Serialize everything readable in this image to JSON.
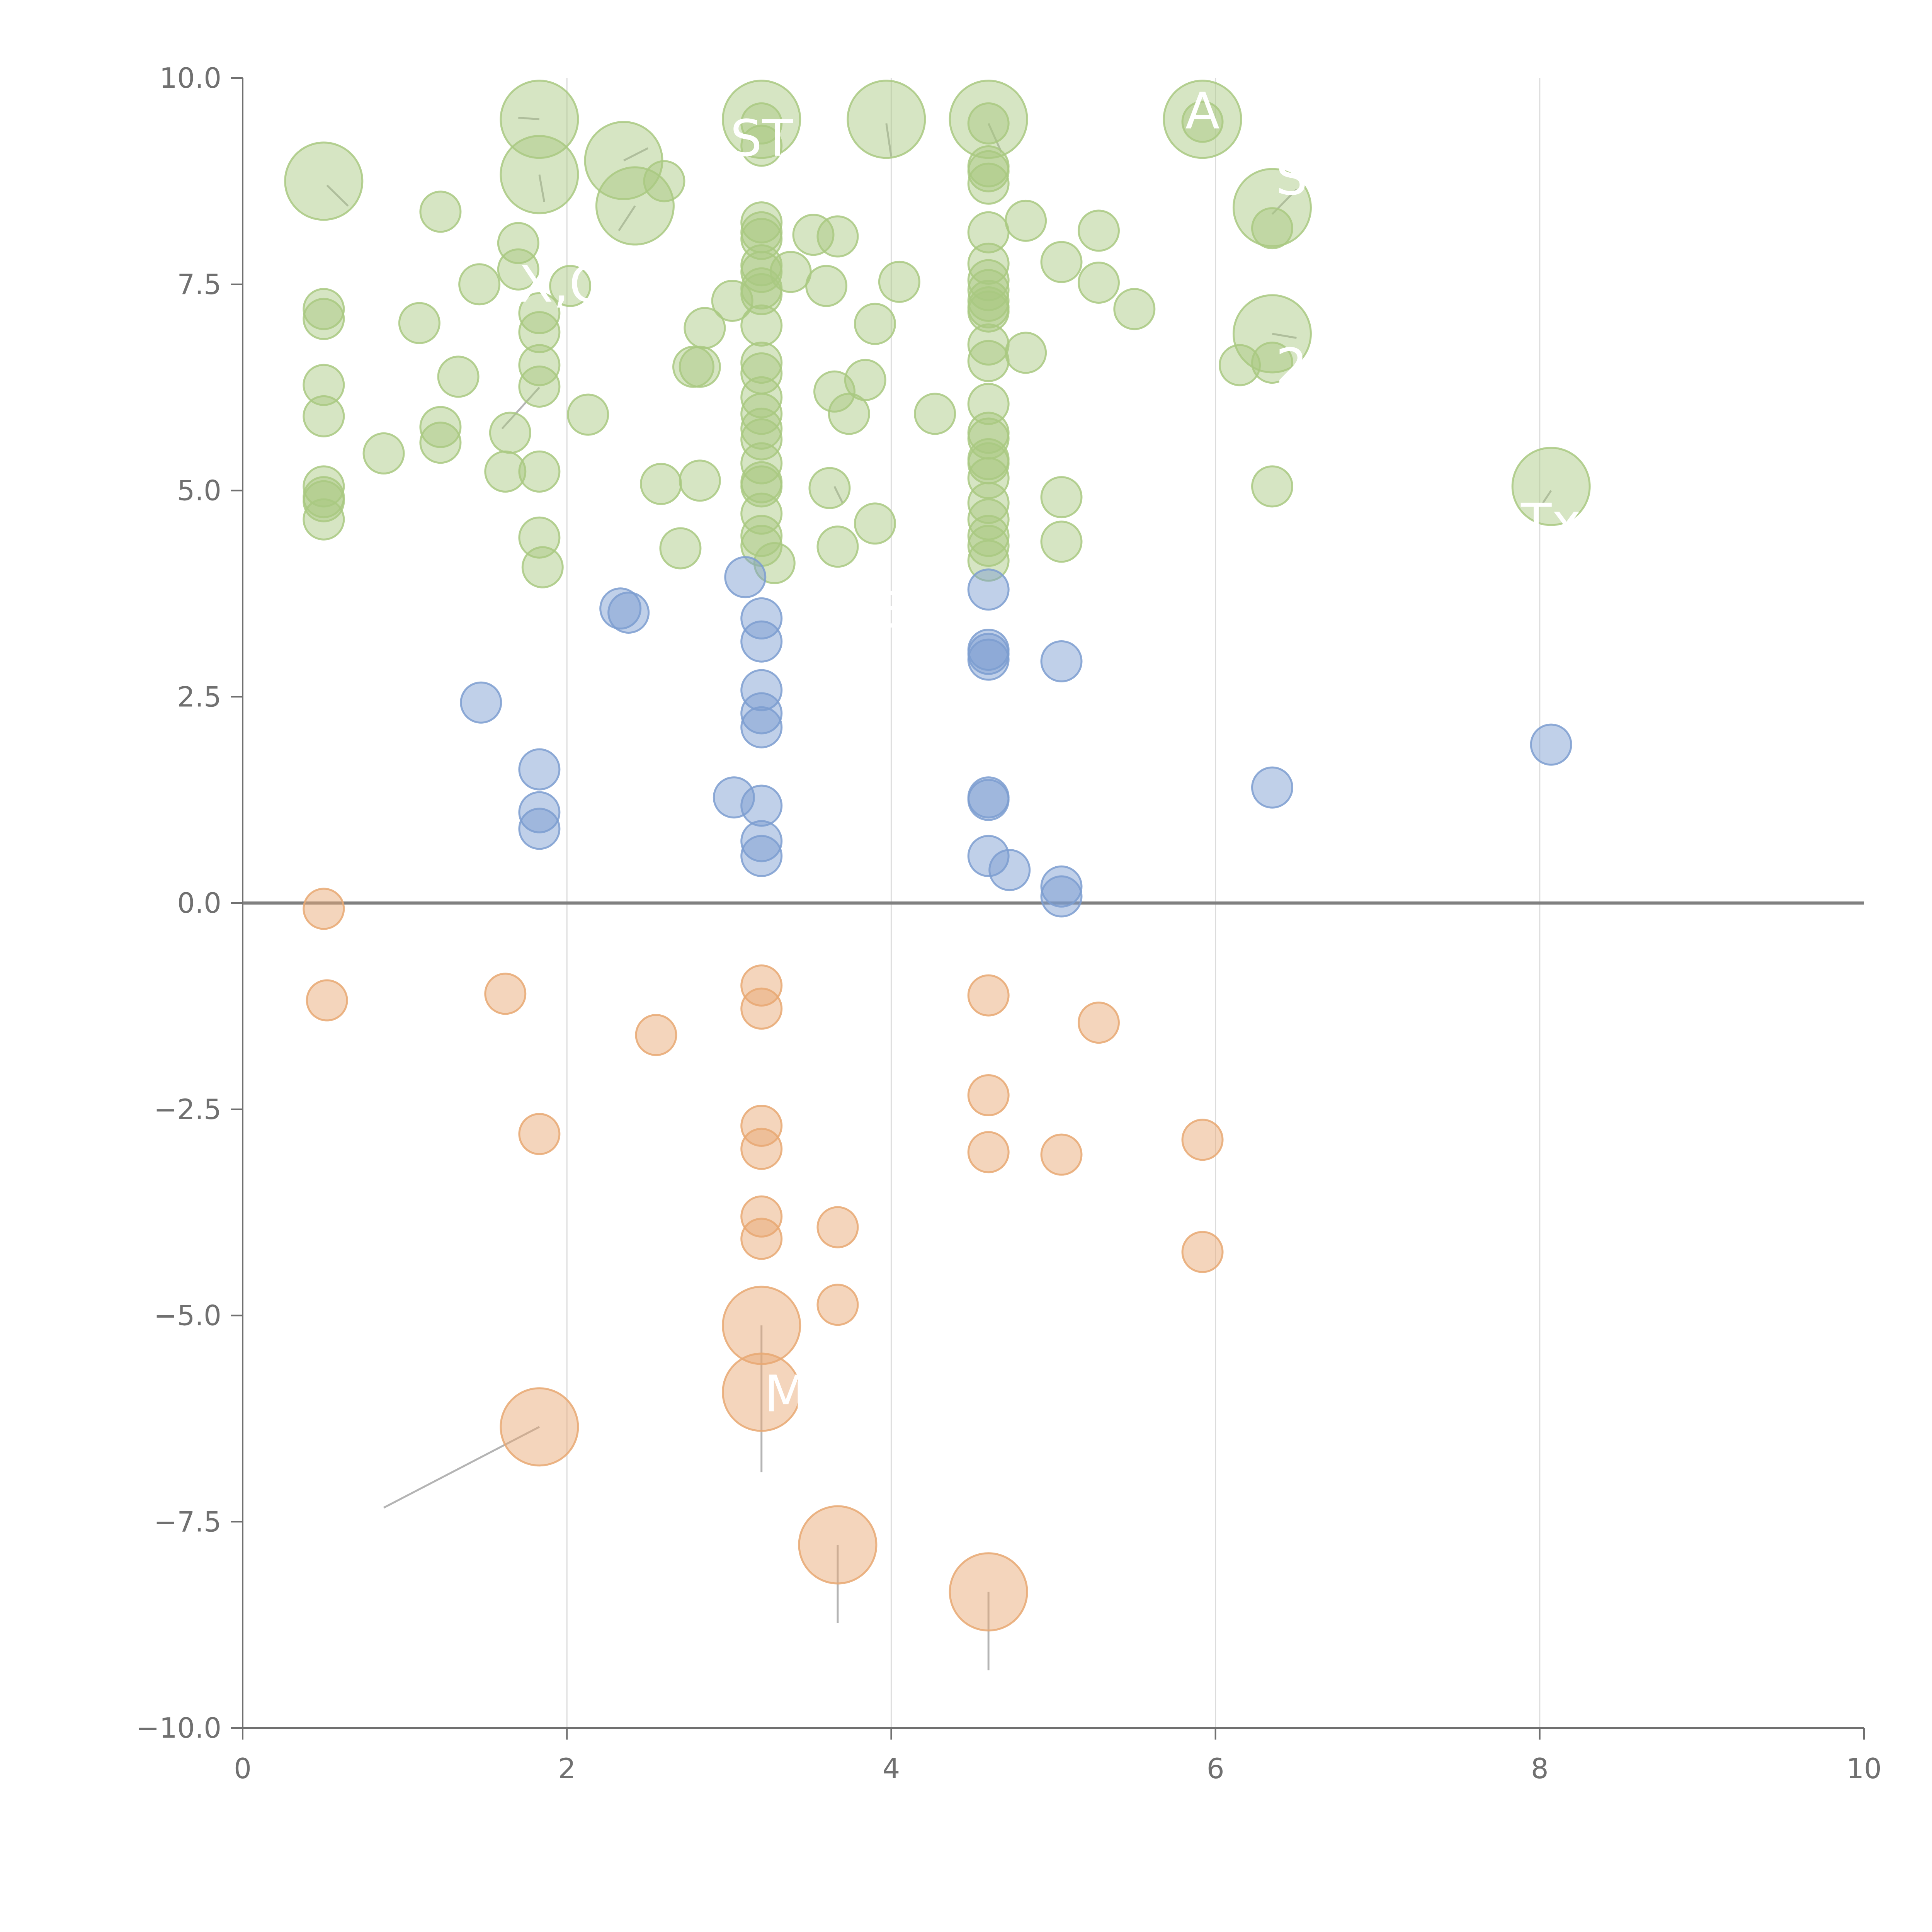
{
  "chart_data": {
    "type": "scatter",
    "title": "",
    "xlabel": "",
    "ylabel": "",
    "xlim": [
      0,
      10
    ],
    "ylim": [
      -10,
      10
    ],
    "x_ticks": [
      0,
      2,
      4,
      6,
      8,
      10
    ],
    "y_ticks": [
      -10,
      -7.5,
      -5,
      -2.5,
      0,
      2.5,
      5,
      7.5,
      10
    ],
    "x_tick_labels": [
      "0",
      "2",
      "4",
      "6",
      "8",
      "10"
    ],
    "y_tick_labels": [
      "−10.0",
      "−7.5",
      "−5.0",
      "−2.5",
      "0.0",
      "2.5",
      "5.0",
      "7.5",
      "10.0"
    ],
    "vertical_grid_at": [
      2,
      4,
      6,
      8
    ],
    "zero_line": 0,
    "colors": {
      "high": "#a9c981",
      "mid": "#7c9dd0",
      "low": "#e8a872",
      "axis": "#707070",
      "grid": "#dcdcdc",
      "zero_line": "#808080",
      "leader": "#b4b4b4",
      "label": "#ffffff"
    },
    "series": [
      {
        "name": "high",
        "color_key": "high",
        "points": [
          [
            0.5,
            8.75,
            2
          ],
          [
            0.5,
            7.2,
            1
          ],
          [
            0.5,
            7.08,
            1
          ],
          [
            0.5,
            6.28,
            1
          ],
          [
            0.5,
            5.9,
            1
          ],
          [
            0.5,
            5.05,
            1
          ],
          [
            0.5,
            4.92,
            1
          ],
          [
            0.5,
            4.87,
            1
          ],
          [
            0.5,
            4.65,
            1
          ],
          [
            0.87,
            5.45,
            1
          ],
          [
            1.09,
            7.03,
            1
          ],
          [
            1.22,
            8.38,
            1
          ],
          [
            1.22,
            5.77,
            1
          ],
          [
            1.22,
            5.58,
            1
          ],
          [
            1.33,
            6.38,
            1
          ],
          [
            1.46,
            7.5,
            1
          ],
          [
            1.62,
            5.23,
            1
          ],
          [
            1.65,
            5.7,
            1
          ],
          [
            1.7,
            8.0,
            1
          ],
          [
            1.7,
            7.68,
            1
          ],
          [
            1.83,
            9.5,
            2
          ],
          [
            1.83,
            8.83,
            2
          ],
          [
            1.83,
            7.15,
            1
          ],
          [
            1.83,
            6.92,
            1
          ],
          [
            1.83,
            6.52,
            1
          ],
          [
            1.83,
            6.26,
            1
          ],
          [
            1.83,
            5.23,
            1
          ],
          [
            1.83,
            4.43,
            1
          ],
          [
            1.85,
            4.07,
            1
          ],
          [
            2.02,
            7.48,
            1
          ],
          [
            2.13,
            5.92,
            1
          ],
          [
            2.35,
            9.0,
            2
          ],
          [
            2.42,
            8.45,
            2
          ],
          [
            2.6,
            8.75,
            1
          ],
          [
            2.58,
            5.08,
            1
          ],
          [
            2.7,
            4.3,
            1
          ],
          [
            2.78,
            6.5,
            1
          ],
          [
            2.82,
            6.5,
            1
          ],
          [
            2.82,
            5.12,
            1
          ],
          [
            2.85,
            6.97,
            1
          ],
          [
            3.02,
            7.3,
            1
          ],
          [
            3.2,
            9.5,
            2
          ],
          [
            3.2,
            9.45,
            1
          ],
          [
            3.2,
            9.18,
            1
          ],
          [
            3.2,
            8.25,
            1
          ],
          [
            3.2,
            8.13,
            1
          ],
          [
            3.2,
            8.05,
            1
          ],
          [
            3.2,
            7.73,
            1
          ],
          [
            3.2,
            7.65,
            1
          ],
          [
            3.2,
            7.45,
            1
          ],
          [
            3.2,
            7.38,
            1
          ],
          [
            3.2,
            7.0,
            1
          ],
          [
            3.2,
            6.55,
            1
          ],
          [
            3.2,
            6.42,
            1
          ],
          [
            3.2,
            6.13,
            1
          ],
          [
            3.2,
            5.93,
            1
          ],
          [
            3.2,
            5.75,
            1
          ],
          [
            3.2,
            5.62,
            1
          ],
          [
            3.2,
            5.33,
            1
          ],
          [
            3.2,
            5.1,
            1
          ],
          [
            3.2,
            5.05,
            1
          ],
          [
            3.2,
            4.72,
            1
          ],
          [
            3.2,
            4.45,
            1
          ],
          [
            3.2,
            4.33,
            1
          ],
          [
            3.28,
            4.12,
            1
          ],
          [
            3.38,
            7.65,
            1
          ],
          [
            3.52,
            8.1,
            1
          ],
          [
            3.6,
            7.48,
            1
          ],
          [
            3.62,
            5.03,
            1
          ],
          [
            3.65,
            6.2,
            1
          ],
          [
            3.67,
            8.08,
            1
          ],
          [
            3.67,
            4.32,
            1
          ],
          [
            3.74,
            5.93,
            1
          ],
          [
            3.84,
            6.34,
            1
          ],
          [
            3.9,
            7.02,
            1
          ],
          [
            3.9,
            4.6,
            1
          ],
          [
            3.97,
            9.5,
            2
          ],
          [
            4.05,
            7.53,
            1
          ],
          [
            4.27,
            5.93,
            1
          ],
          [
            4.6,
            9.5,
            2
          ],
          [
            4.6,
            9.45,
            1
          ],
          [
            4.6,
            8.93,
            1
          ],
          [
            4.6,
            8.87,
            1
          ],
          [
            4.6,
            8.72,
            1
          ],
          [
            4.6,
            8.13,
            1
          ],
          [
            4.6,
            7.75,
            1
          ],
          [
            4.6,
            7.55,
            1
          ],
          [
            4.6,
            7.43,
            1
          ],
          [
            4.6,
            7.3,
            1
          ],
          [
            4.6,
            7.22,
            1
          ],
          [
            4.6,
            7.17,
            1
          ],
          [
            4.6,
            6.77,
            1
          ],
          [
            4.6,
            6.57,
            1
          ],
          [
            4.6,
            6.05,
            1
          ],
          [
            4.6,
            5.7,
            1
          ],
          [
            4.6,
            5.63,
            1
          ],
          [
            4.6,
            5.38,
            1
          ],
          [
            4.6,
            5.33,
            1
          ],
          [
            4.6,
            5.15,
            1
          ],
          [
            4.6,
            4.85,
            1
          ],
          [
            4.6,
            4.65,
            1
          ],
          [
            4.6,
            4.45,
            1
          ],
          [
            4.6,
            4.33,
            1
          ],
          [
            4.6,
            4.15,
            1
          ],
          [
            4.83,
            8.27,
            1
          ],
          [
            4.83,
            6.67,
            1
          ],
          [
            5.05,
            7.77,
            1
          ],
          [
            5.05,
            4.92,
            1
          ],
          [
            5.05,
            4.38,
            1
          ],
          [
            5.28,
            8.15,
            1
          ],
          [
            5.28,
            7.52,
            1
          ],
          [
            5.5,
            7.2,
            1
          ],
          [
            5.92,
            9.5,
            2
          ],
          [
            5.92,
            9.47,
            1
          ],
          [
            6.15,
            6.52,
            1
          ],
          [
            6.35,
            8.43,
            2
          ],
          [
            6.35,
            8.18,
            1
          ],
          [
            6.35,
            6.9,
            2
          ],
          [
            6.35,
            6.55,
            1
          ],
          [
            6.35,
            5.05,
            1
          ],
          [
            8.07,
            5.05,
            2
          ]
        ]
      },
      {
        "name": "mid",
        "color_key": "mid",
        "points": [
          [
            1.47,
            2.43,
            1
          ],
          [
            1.83,
            1.62,
            1
          ],
          [
            1.83,
            1.1,
            1
          ],
          [
            1.83,
            0.9,
            1
          ],
          [
            2.33,
            3.57,
            1
          ],
          [
            2.38,
            3.52,
            1
          ],
          [
            3.03,
            1.28,
            1
          ],
          [
            3.1,
            3.95,
            1
          ],
          [
            3.2,
            3.45,
            1
          ],
          [
            3.2,
            3.17,
            1
          ],
          [
            3.2,
            2.58,
            1
          ],
          [
            3.2,
            2.3,
            1
          ],
          [
            3.2,
            2.13,
            1
          ],
          [
            3.2,
            1.18,
            1
          ],
          [
            3.2,
            0.75,
            1
          ],
          [
            3.2,
            0.57,
            1
          ],
          [
            4.6,
            3.8,
            1
          ],
          [
            4.6,
            3.07,
            1
          ],
          [
            4.6,
            3.02,
            1
          ],
          [
            4.6,
            2.95,
            1
          ],
          [
            4.6,
            1.28,
            1
          ],
          [
            4.6,
            1.25,
            1
          ],
          [
            4.6,
            0.57,
            1
          ],
          [
            4.73,
            0.4,
            1
          ],
          [
            5.05,
            2.93,
            1
          ],
          [
            5.05,
            0.2,
            1
          ],
          [
            5.05,
            0.08,
            1
          ],
          [
            6.35,
            1.4,
            1
          ],
          [
            8.07,
            1.92,
            1
          ]
        ]
      },
      {
        "name": "low",
        "color_key": "low",
        "points": [
          [
            0.5,
            -0.07,
            1
          ],
          [
            0.52,
            -1.18,
            1
          ],
          [
            1.62,
            -1.1,
            1
          ],
          [
            1.83,
            -2.8,
            1
          ],
          [
            1.83,
            -6.35,
            2
          ],
          [
            2.55,
            -1.6,
            1
          ],
          [
            3.2,
            -1.0,
            1
          ],
          [
            3.2,
            -1.28,
            1
          ],
          [
            3.2,
            -2.7,
            1
          ],
          [
            3.2,
            -2.98,
            1
          ],
          [
            3.2,
            -3.8,
            1
          ],
          [
            3.2,
            -4.07,
            1
          ],
          [
            3.2,
            -5.12,
            2
          ],
          [
            3.2,
            -5.93,
            2
          ],
          [
            3.67,
            -3.93,
            1
          ],
          [
            3.67,
            -4.87,
            1
          ],
          [
            3.67,
            -7.78,
            2
          ],
          [
            4.6,
            -1.12,
            1
          ],
          [
            4.6,
            -2.33,
            1
          ],
          [
            4.6,
            -3.02,
            1
          ],
          [
            4.6,
            -8.35,
            2
          ],
          [
            5.05,
            -3.05,
            1
          ],
          [
            5.28,
            -1.45,
            1
          ],
          [
            5.92,
            -2.87,
            1
          ],
          [
            5.92,
            -4.23,
            1
          ]
        ]
      }
    ],
    "leader_lines": [
      [
        [
          1.83,
          -6.35
        ],
        [
          0.87,
          -7.33
        ]
      ],
      [
        [
          3.2,
          -5.12
        ],
        [
          3.2,
          -6.9
        ]
      ],
      [
        [
          3.67,
          -7.78
        ],
        [
          3.67,
          -8.73
        ]
      ],
      [
        [
          4.6,
          -8.35
        ],
        [
          4.6,
          -9.3
        ]
      ],
      [
        [
          0.52,
          8.7
        ],
        [
          0.65,
          8.45
        ]
      ],
      [
        [
          1.83,
          9.5
        ],
        [
          1.7,
          9.52
        ]
      ],
      [
        [
          1.83,
          8.83
        ],
        [
          1.86,
          8.5
        ]
      ],
      [
        [
          2.35,
          9.0
        ],
        [
          2.5,
          9.15
        ]
      ],
      [
        [
          2.42,
          8.45
        ],
        [
          2.32,
          8.15
        ]
      ],
      [
        [
          3.97,
          9.45
        ],
        [
          4.0,
          9.05
        ]
      ],
      [
        [
          4.6,
          9.45
        ],
        [
          4.68,
          9.1
        ]
      ],
      [
        [
          6.35,
          8.35
        ],
        [
          6.5,
          8.65
        ]
      ],
      [
        [
          6.35,
          6.9
        ],
        [
          6.5,
          6.85
        ]
      ],
      [
        [
          8.07,
          5.0
        ],
        [
          8.02,
          4.85
        ]
      ],
      [
        [
          1.83,
          6.25
        ],
        [
          1.6,
          5.75
        ]
      ],
      [
        [
          3.65,
          5.05
        ],
        [
          3.7,
          4.85
        ]
      ]
    ],
    "annotations": [
      {
        "text": "ST",
        "x": 3.2,
        "y": 9.27
      },
      {
        "text": "A",
        "x": 5.92,
        "y": 9.6
      },
      {
        "text": "X,O",
        "x": 1.98,
        "y": 7.5
      },
      {
        "text": "Tx",
        "x": 8.07,
        "y": 4.62
      },
      {
        "text": "M",
        "x": 3.35,
        "y": -5.95
      },
      {
        "text": "S",
        "x": 6.47,
        "y": 8.8
      },
      {
        "text": "2",
        "x": 6.47,
        "y": 6.5
      },
      {
        "text": "E",
        "x": 4.02,
        "y": 3.55
      }
    ]
  }
}
